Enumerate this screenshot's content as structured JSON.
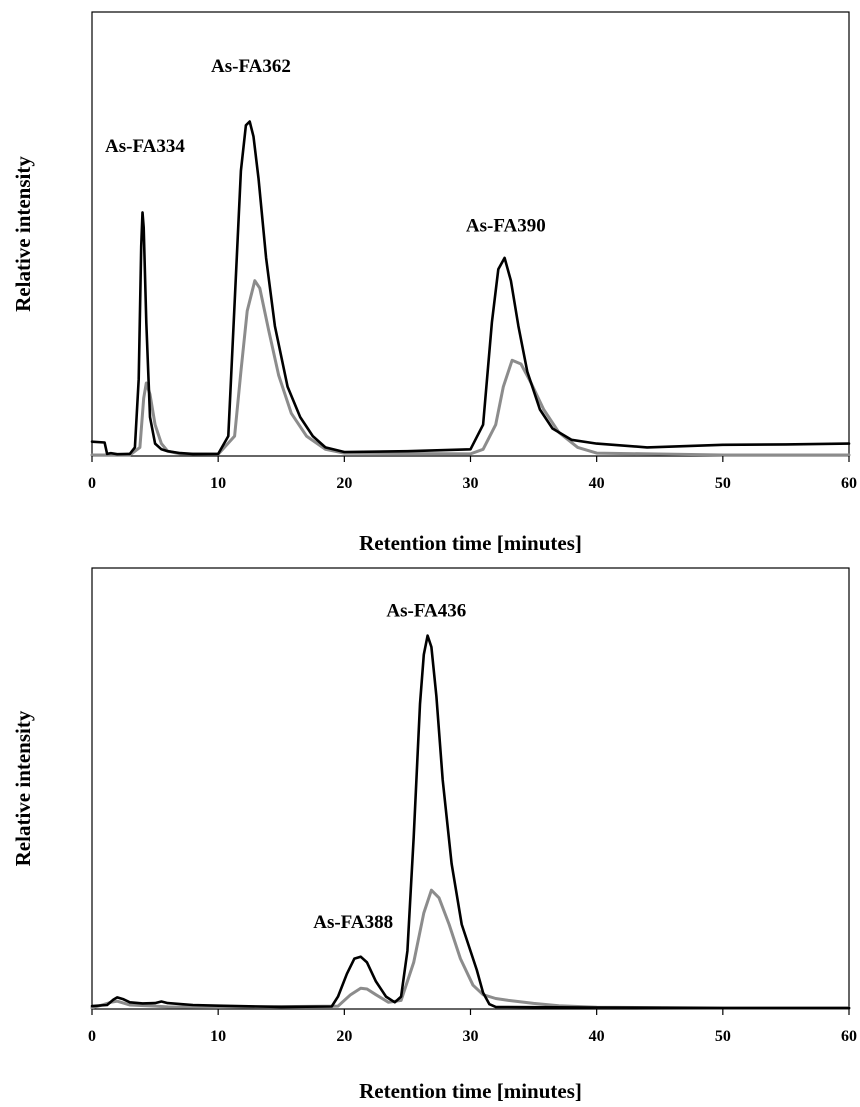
{
  "chart_data": [
    {
      "type": "line",
      "xlabel": "Retention time [minutes]",
      "ylabel": "Relative intensity",
      "xlim": [
        0,
        60
      ],
      "ylim": [
        0,
        100
      ],
      "xticks": [
        0,
        10,
        20,
        30,
        40,
        50,
        60
      ],
      "ytick_labels_shown": false,
      "grid": false,
      "legend": "none",
      "annotations": [
        {
          "text": "As-FA334",
          "x": 4.2,
          "y": 80
        },
        {
          "text": "As-FA362",
          "x": 12.6,
          "y": 101
        },
        {
          "text": "As-FA390",
          "x": 32.8,
          "y": 59
        }
      ],
      "series": [
        {
          "color": "#000000",
          "x": [
            0,
            1,
            1.2,
            1.5,
            2,
            3,
            3.4,
            3.7,
            3.9,
            4.0,
            4.1,
            4.3,
            4.6,
            5.0,
            5.5,
            6.0,
            7.0,
            8,
            10,
            10.8,
            11.3,
            11.8,
            12.2,
            12.5,
            12.8,
            13.2,
            13.8,
            14.5,
            15.5,
            16.5,
            17.5,
            18.5,
            20,
            25,
            30,
            31,
            31.7,
            32.2,
            32.7,
            33.2,
            33.8,
            34.5,
            35.5,
            36.5,
            38,
            40,
            44,
            50,
            55,
            60
          ],
          "y": [
            3.5,
            3.3,
            0.3,
            0.5,
            0.2,
            0.3,
            2,
            20,
            55,
            64,
            60,
            35,
            10,
            3,
            1.5,
            1,
            0.5,
            0.3,
            0.3,
            5,
            40,
            75,
            87,
            88,
            84,
            73,
            52,
            34,
            18,
            10,
            5,
            2,
            0.8,
            1.0,
            1.5,
            8,
            35,
            49,
            52,
            46,
            34,
            22,
            12,
            7,
            4,
            3,
            2,
            2.7,
            2.8,
            3.0
          ]
        },
        {
          "color": "#8c8c8c",
          "x": [
            0,
            3,
            3.8,
            4.1,
            4.3,
            4.6,
            5.0,
            5.5,
            6.0,
            7,
            10,
            11.3,
            11.8,
            12.3,
            12.9,
            13.3,
            14,
            14.8,
            15.8,
            17,
            18.5,
            20,
            30,
            31,
            32,
            32.6,
            33.3,
            34,
            34.8,
            35.8,
            37,
            38.5,
            40,
            50,
            60
          ],
          "y": [
            0,
            0,
            2,
            15,
            19,
            16,
            8,
            3,
            1,
            0.3,
            0.2,
            5,
            22,
            38,
            46,
            44,
            33,
            21,
            11,
            5,
            1.5,
            0.5,
            0.3,
            1.5,
            8,
            18,
            25,
            24,
            19,
            12,
            6,
            2,
            0.5,
            0,
            0
          ]
        }
      ]
    },
    {
      "type": "line",
      "xlabel": "Retention time [minutes]",
      "ylabel": "Relative intensity",
      "xlim": [
        0,
        60
      ],
      "ylim": [
        0,
        100
      ],
      "xticks": [
        0,
        10,
        20,
        30,
        40,
        50,
        60
      ],
      "ytick_labels_shown": false,
      "grid": false,
      "legend": "none",
      "annotations": [
        {
          "text": "As-FA388",
          "x": 20.7,
          "y": 21
        },
        {
          "text": "As-FA436",
          "x": 26.5,
          "y": 103
        }
      ],
      "series": [
        {
          "color": "#000000",
          "x": [
            0,
            1.2,
            1.7,
            2.0,
            2.5,
            3,
            4,
            5,
            5.5,
            6,
            8,
            10,
            15,
            19,
            19.5,
            20.2,
            20.8,
            21.3,
            21.8,
            22.5,
            23.3,
            24,
            24.5,
            25,
            25.5,
            26,
            26.3,
            26.6,
            26.9,
            27.3,
            27.8,
            28.5,
            29.3,
            30,
            30.5,
            31,
            31.5,
            32,
            35,
            40,
            50,
            60
          ],
          "y": [
            0.5,
            0.8,
            2.2,
            2.8,
            2.3,
            1.5,
            1.2,
            1.3,
            1.7,
            1.3,
            0.8,
            0.6,
            0.3,
            0.4,
            3,
            9,
            13,
            13.5,
            12,
            7,
            3,
            1.5,
            3,
            15,
            45,
            80,
            93,
            98,
            95,
            82,
            60,
            38,
            22,
            15,
            10,
            4,
            1,
            0.3,
            0.2,
            0.1,
            0,
            0
          ]
        },
        {
          "color": "#8c8c8c",
          "x": [
            0,
            1.5,
            2.0,
            2.5,
            3,
            5,
            6,
            10,
            19.5,
            20.5,
            21.3,
            21.8,
            22.5,
            23.5,
            24.5,
            25.5,
            26.3,
            26.9,
            27.5,
            28.3,
            29.2,
            30.2,
            31,
            32,
            33,
            35,
            37,
            40,
            50,
            60
          ],
          "y": [
            0,
            1.5,
            1.8,
            1.3,
            0.8,
            0.5,
            0.3,
            0.2,
            0.5,
            3.5,
            5.2,
            5,
            3.5,
            1.5,
            2,
            12,
            25,
            31,
            29,
            22,
            13,
            6,
            3.5,
            2.5,
            2,
            1.2,
            0.6,
            0.2,
            0,
            0
          ]
        }
      ]
    }
  ]
}
